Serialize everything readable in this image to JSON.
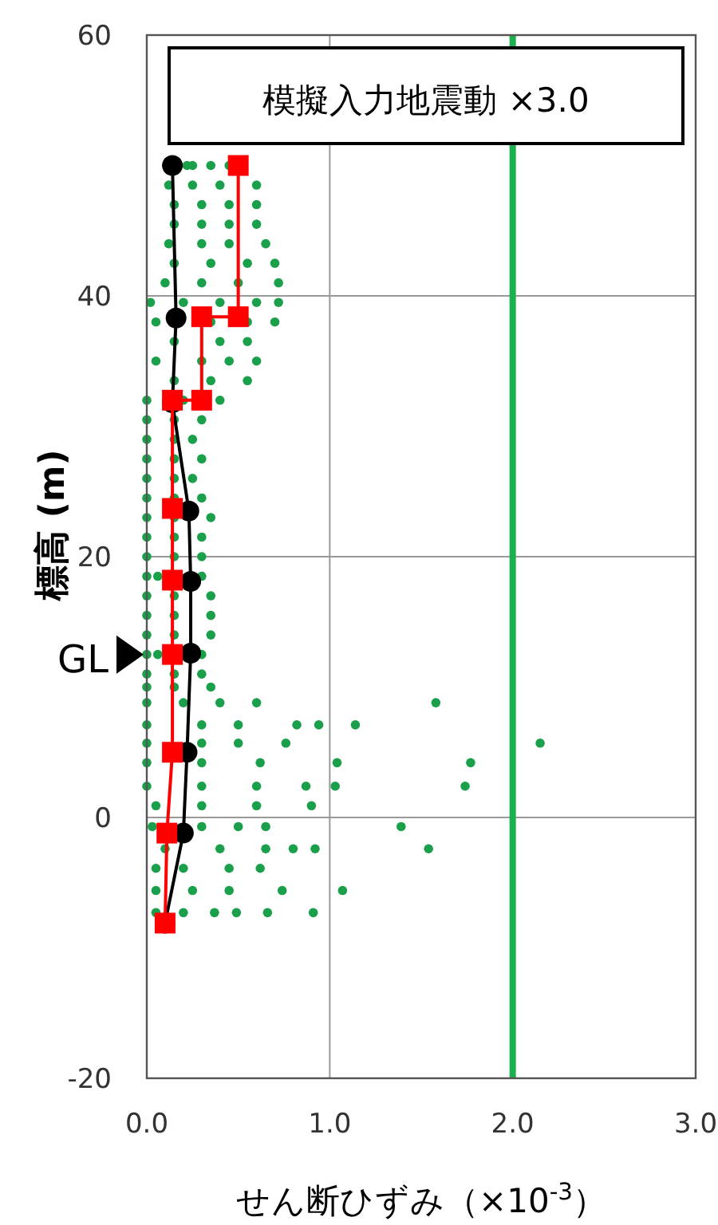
{
  "chart_data": {
    "type": "scatter",
    "annotations": [
      "模擬入力地震動 ×3.0",
      {
        "text": "GL",
        "x": 0,
        "y": 12.5
      }
    ],
    "xlabel": "せん断ひずみ（×10$^{-3}$）",
    "ylabel": "標高 (m)",
    "xlim": [
      0,
      3
    ],
    "ylim": [
      -20,
      60
    ],
    "xticks": [
      {
        "value": 0,
        "label": "0.0"
      },
      {
        "value": 1,
        "label": "1.0"
      },
      {
        "value": 2,
        "label": "2.0"
      },
      {
        "value": 3,
        "label": "3.0"
      }
    ],
    "yticks": [
      -20,
      0,
      20,
      40,
      60
    ],
    "grid": true,
    "ref_lines": [
      {
        "axis": "x",
        "value": 2.0,
        "color": "#1db04e"
      }
    ],
    "series": [
      {
        "color": "#1aa04a",
        "marker": "circle",
        "x": [
          0.22,
          0.25,
          0.35,
          0.45,
          0.12,
          0.25,
          0.4,
          0.6,
          0.15,
          0.3,
          0.45,
          0.6,
          0.15,
          0.3,
          0.45,
          0.6,
          0.12,
          0.3,
          0.45,
          0.65,
          0.15,
          0.35,
          0.55,
          0.7,
          0.1,
          0.3,
          0.5,
          0.72,
          0.02,
          0.2,
          0.4,
          0.6,
          0.72,
          0.05,
          0.35,
          0.55,
          0.7,
          0.15,
          0.4,
          0.55,
          0.05,
          0.3,
          0.45,
          0.6,
          0.15,
          0.35,
          0.55,
          0.0,
          0.2,
          0.4,
          0.0,
          0.15,
          0.3,
          0.0,
          0.15,
          0.25,
          0.0,
          0.15,
          0.3,
          0.0,
          0.15,
          0.25,
          0.0,
          0.15,
          0.3,
          0.0,
          0.15,
          0.35,
          0.0,
          0.15,
          0.3,
          0.0,
          0.15,
          0.3,
          0.0,
          0.06,
          0.3,
          0.0,
          0.15,
          0.35,
          0.0,
          0.15,
          0.35,
          0.0,
          0.15,
          0.35,
          0.0,
          0.06,
          0.3,
          0.0,
          0.15,
          0.3,
          0.0,
          0.15,
          0.35,
          0.0,
          0.2,
          0.4,
          0.6,
          1.58,
          0.0,
          0.3,
          0.5,
          0.82,
          0.94,
          1.14,
          0.0,
          0.3,
          0.5,
          0.76,
          2.15,
          0.0,
          0.3,
          0.62,
          1.04,
          1.77,
          0.0,
          0.3,
          0.6,
          0.87,
          1.03,
          1.74,
          0.05,
          0.3,
          0.6,
          0.9,
          0.03,
          0.3,
          0.5,
          0.65,
          1.39,
          0.1,
          0.4,
          0.65,
          0.8,
          0.92,
          1.54,
          0.05,
          0.2,
          0.45,
          0.62,
          0.05,
          0.25,
          0.45,
          0.74,
          1.07,
          0.05,
          0.2,
          0.37,
          0.49,
          0.66,
          0.91
        ],
        "values": [
          50,
          50,
          50,
          50,
          48.5,
          48.5,
          48.5,
          48.5,
          47,
          47,
          47,
          47,
          45.5,
          45.5,
          45.5,
          45.5,
          44,
          44,
          44,
          44,
          42.5,
          42.5,
          42.5,
          42.5,
          41,
          41,
          41,
          41,
          39.5,
          39.5,
          39.5,
          39.5,
          39.5,
          38,
          38,
          38,
          38,
          36.5,
          36.5,
          36.5,
          35,
          35,
          35,
          35,
          33.5,
          33.5,
          33.5,
          32,
          32,
          32,
          30.5,
          30.5,
          30.5,
          29,
          29,
          29,
          27.5,
          27.5,
          27.5,
          26,
          26,
          26,
          24.5,
          24.5,
          24.5,
          23,
          23,
          23,
          21.5,
          21.5,
          21.5,
          20,
          20,
          20,
          18.5,
          18.5,
          18.5,
          17,
          17,
          17,
          15.5,
          15.5,
          15.5,
          14,
          14,
          14,
          12.5,
          12.5,
          12.5,
          11,
          11,
          11,
          10,
          10,
          10,
          8.8,
          8.8,
          8.8,
          8.8,
          8.8,
          7.1,
          7.1,
          7.1,
          7.1,
          7.1,
          7.1,
          5.7,
          5.7,
          5.7,
          5.7,
          5.7,
          4.2,
          4.2,
          4.2,
          4.2,
          4.2,
          2.4,
          2.4,
          2.4,
          2.4,
          2.4,
          2.4,
          0.9,
          0.9,
          0.9,
          0.9,
          -0.7,
          -0.7,
          -0.7,
          -0.7,
          -0.7,
          -2.4,
          -2.4,
          -2.4,
          -2.4,
          -2.4,
          -2.4,
          -3.9,
          -3.9,
          -3.9,
          -3.9,
          -5.6,
          -5.6,
          -5.6,
          -5.6,
          -5.6,
          -7.3,
          -7.3,
          -7.3,
          -7.3,
          -7.3,
          -7.3
        ]
      },
      {
        "type": "line",
        "color": "#000000",
        "marker": "circle",
        "x": [
          0.14,
          0.16,
          0.14,
          0.23,
          0.24,
          0.24,
          0.22,
          0.2,
          0.1
        ],
        "values": [
          50,
          38.3,
          31.8,
          23.5,
          18.1,
          12.6,
          5.0,
          -1.2,
          -8.1
        ]
      },
      {
        "type": "line",
        "color": "#ff0000",
        "marker": "square",
        "x": [
          0.5,
          0.5,
          0.3,
          0.3,
          0.14,
          0.14,
          0.14,
          0.14,
          0.14,
          0.11,
          0.1
        ],
        "values": [
          50,
          38.4,
          38.4,
          32,
          32,
          23.7,
          18.2,
          12.5,
          5.0,
          -1.2,
          -8.1
        ]
      }
    ]
  }
}
